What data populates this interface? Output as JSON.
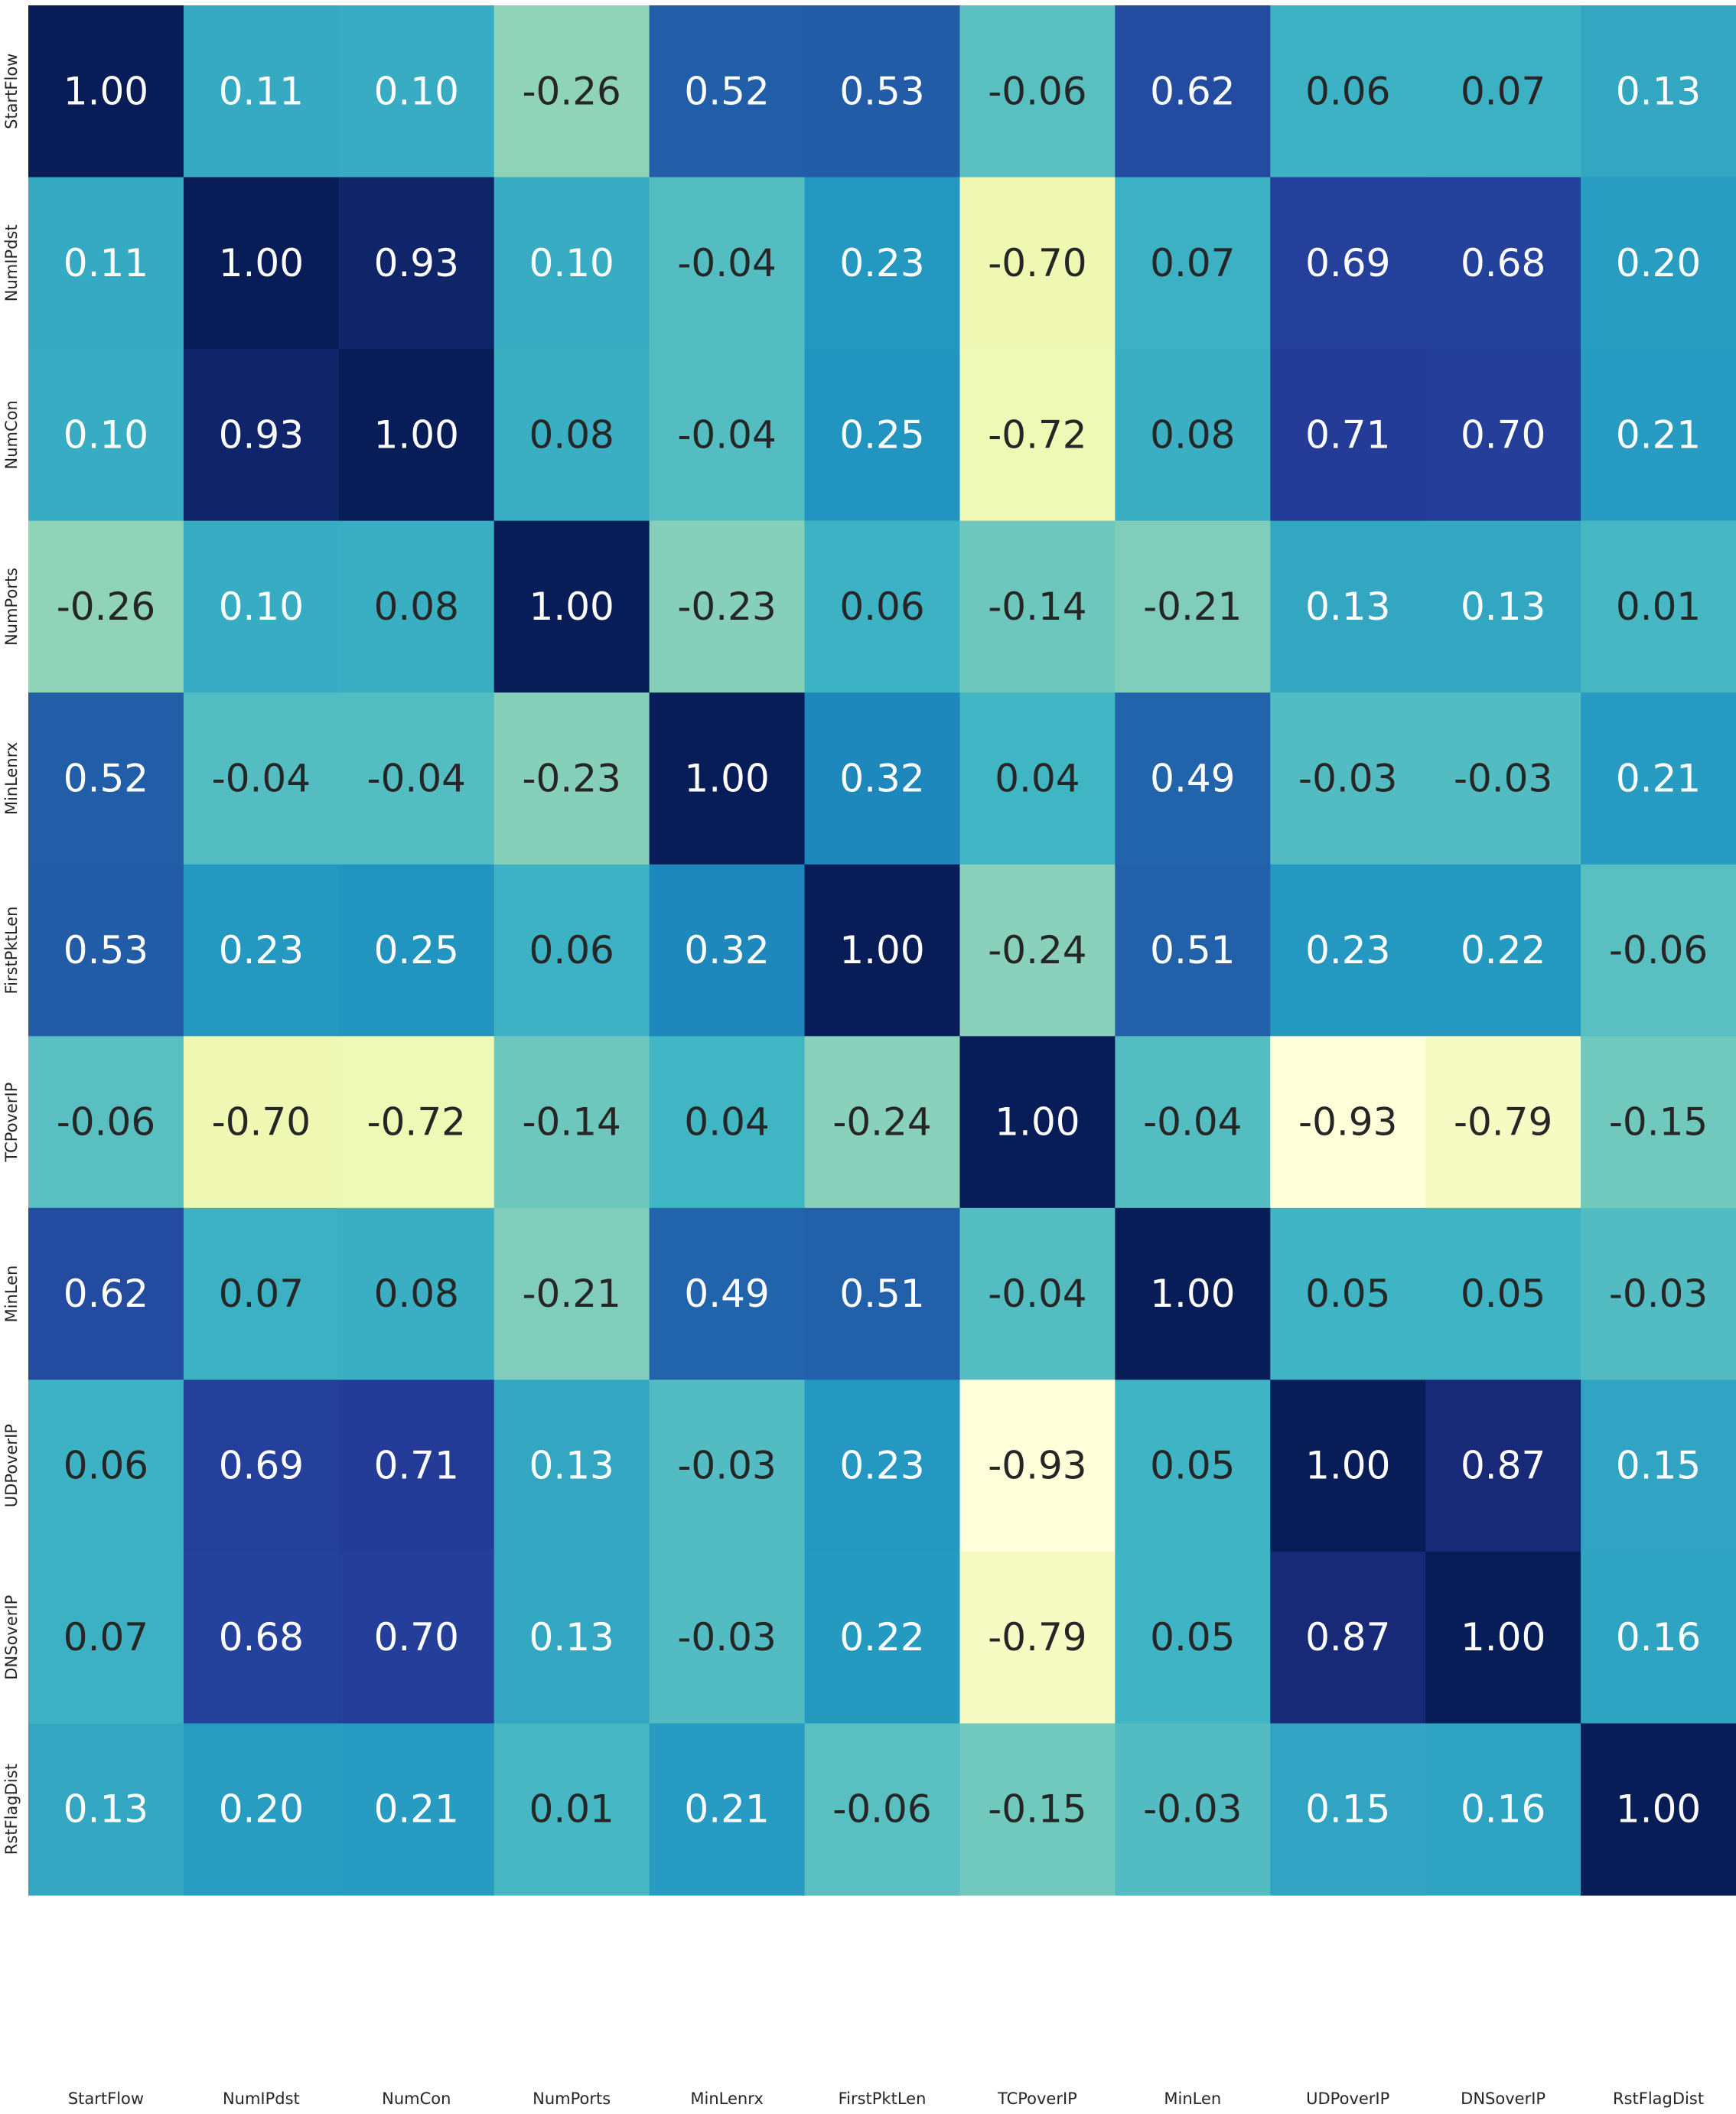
{
  "chart_data": {
    "type": "heatmap",
    "colormap": "YlGnBu",
    "vmin": -0.93,
    "vmax": 1.0,
    "colorbar": false,
    "annot_format": "0.00",
    "x_labels": [
      "StartFlow",
      "NumIPdst",
      "NumCon",
      "NumPorts",
      "MinLenrx",
      "FirstPktLen",
      "TCPoverIP",
      "MinLen",
      "UDPoverIP",
      "DNSoverIP",
      "RstFlagDist"
    ],
    "y_labels": [
      "StartFlow",
      "NumIPdst",
      "NumCon",
      "NumPorts",
      "MinLenrx",
      "FirstPktLen",
      "TCPoverIP",
      "MinLen",
      "UDPoverIP",
      "DNSoverIP",
      "RstFlagDist"
    ],
    "values": [
      [
        1.0,
        0.11,
        0.1,
        -0.26,
        0.52,
        0.53,
        -0.06,
        0.62,
        0.06,
        0.07,
        0.13
      ],
      [
        0.11,
        1.0,
        0.93,
        0.1,
        -0.04,
        0.23,
        -0.7,
        0.07,
        0.69,
        0.68,
        0.2
      ],
      [
        0.1,
        0.93,
        1.0,
        0.08,
        -0.04,
        0.25,
        -0.72,
        0.08,
        0.71,
        0.7,
        0.21
      ],
      [
        -0.26,
        0.1,
        0.08,
        1.0,
        -0.23,
        0.06,
        -0.14,
        -0.21,
        0.13,
        0.13,
        0.01
      ],
      [
        0.52,
        -0.04,
        -0.04,
        -0.23,
        1.0,
        0.32,
        0.04,
        0.49,
        -0.03,
        -0.03,
        0.21
      ],
      [
        0.53,
        0.23,
        0.25,
        0.06,
        0.32,
        1.0,
        -0.24,
        0.51,
        0.23,
        0.22,
        -0.06
      ],
      [
        -0.06,
        -0.7,
        -0.72,
        -0.14,
        0.04,
        -0.24,
        1.0,
        -0.04,
        -0.93,
        -0.79,
        -0.15
      ],
      [
        0.62,
        0.07,
        0.08,
        -0.21,
        0.49,
        0.51,
        -0.04,
        1.0,
        0.05,
        0.05,
        -0.03
      ],
      [
        0.06,
        0.69,
        0.71,
        0.13,
        -0.03,
        0.23,
        -0.93,
        0.05,
        1.0,
        0.87,
        0.15
      ],
      [
        0.07,
        0.68,
        0.7,
        0.13,
        -0.03,
        0.22,
        -0.79,
        0.05,
        0.87,
        1.0,
        0.16
      ],
      [
        0.13,
        0.2,
        0.21,
        0.01,
        0.21,
        -0.06,
        -0.15,
        -0.03,
        0.15,
        0.16,
        1.0
      ]
    ]
  }
}
